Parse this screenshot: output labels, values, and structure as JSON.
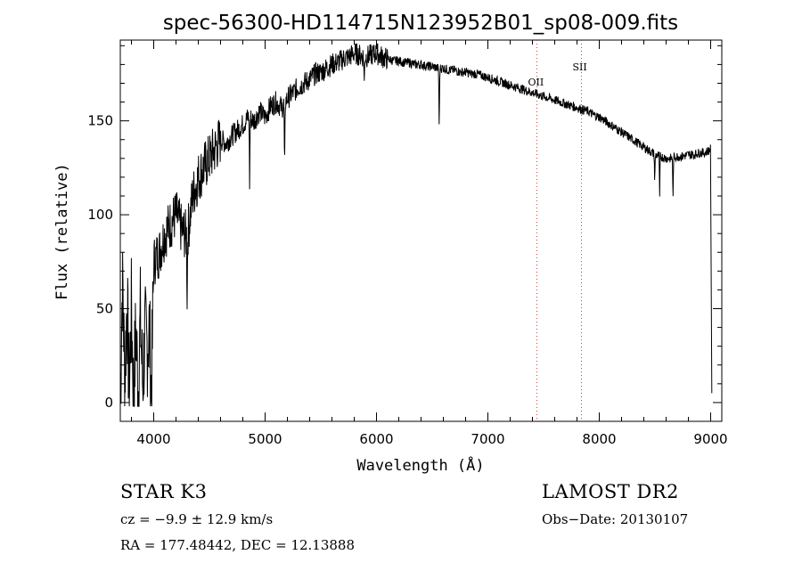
{
  "chart_data": {
    "type": "line",
    "title": "spec-56300-HD114715N123952B01_sp08-009.fits",
    "xlabel": "Wavelength (Å)",
    "ylabel": "Flux (relative)",
    "xlim": [
      3700,
      9100
    ],
    "ylim": [
      -10,
      193
    ],
    "xticks": [
      4000,
      5000,
      6000,
      7000,
      8000,
      9000
    ],
    "yticks": [
      0,
      50,
      100,
      150
    ],
    "grid": false,
    "series": [
      {
        "x": [
          3700,
          3720,
          3740,
          3760,
          3780,
          3800,
          3820,
          3840,
          3860,
          3880,
          3900,
          3920,
          3940,
          3960,
          3980,
          4000,
          4050,
          4100,
          4150,
          4200,
          4250,
          4300,
          4350,
          4400,
          4450,
          4500,
          4550,
          4600,
          4650,
          4700,
          4750,
          4800,
          4850,
          4900,
          4950,
          5000,
          5050,
          5100,
          5150,
          5200,
          5250,
          5300,
          5350,
          5400,
          5450,
          5500,
          5550,
          5600,
          5650,
          5700,
          5750,
          5800,
          5850,
          5900,
          5950,
          6000,
          6050,
          6100,
          6150,
          6200,
          6250,
          6300,
          6350,
          6400,
          6450,
          6500,
          6550,
          6600,
          6650,
          6700,
          6750,
          6800,
          6850,
          6900,
          6950,
          7000,
          7050,
          7100,
          7150,
          7200,
          7250,
          7300,
          7350,
          7400,
          7450,
          7500,
          7550,
          7600,
          7650,
          7700,
          7750,
          7800,
          7850,
          7900,
          7950,
          8000,
          8050,
          8100,
          8150,
          8200,
          8250,
          8300,
          8350,
          8400,
          8450,
          8500,
          8550,
          8600,
          8650,
          8700,
          8750,
          8800,
          8850,
          8900,
          8950,
          9000
        ],
        "y": [
          2,
          70,
          10,
          55,
          5,
          50,
          0,
          40,
          5,
          45,
          10,
          35,
          30,
          40,
          2,
          75,
          80,
          90,
          95,
          100,
          92,
          88,
          110,
          120,
          125,
          130,
          135,
          140,
          138,
          142,
          145,
          148,
          152,
          150,
          155,
          152,
          158,
          160,
          157,
          162,
          165,
          168,
          170,
          172,
          175,
          176,
          178,
          180,
          181,
          183,
          184,
          186,
          185,
          184,
          185,
          186,
          184,
          183,
          182,
          182,
          181,
          181,
          180,
          180,
          179,
          179,
          178,
          178,
          177,
          177,
          176,
          176,
          175,
          175,
          174,
          173,
          172,
          171,
          170,
          169,
          168,
          167,
          166,
          165,
          164,
          163,
          162,
          161,
          160,
          159,
          158,
          157,
          156,
          155,
          153,
          152,
          150,
          148,
          146,
          144,
          142,
          140,
          138,
          136,
          134,
          132,
          131,
          130,
          130,
          131,
          131,
          132,
          132,
          133,
          133,
          135
        ]
      }
    ],
    "annotations": [
      "OII",
      "SII"
    ],
    "markers": [
      7440,
      7840
    ]
  },
  "info": {
    "left_line1": "STAR    K3",
    "left_line2": "cz = −9.9 ± 12.9 km/s",
    "left_line3": "RA = 177.48442, DEC =  12.13888",
    "right_line1": "LAMOST DR2",
    "right_line2": "Obs−Date: 20130107"
  }
}
